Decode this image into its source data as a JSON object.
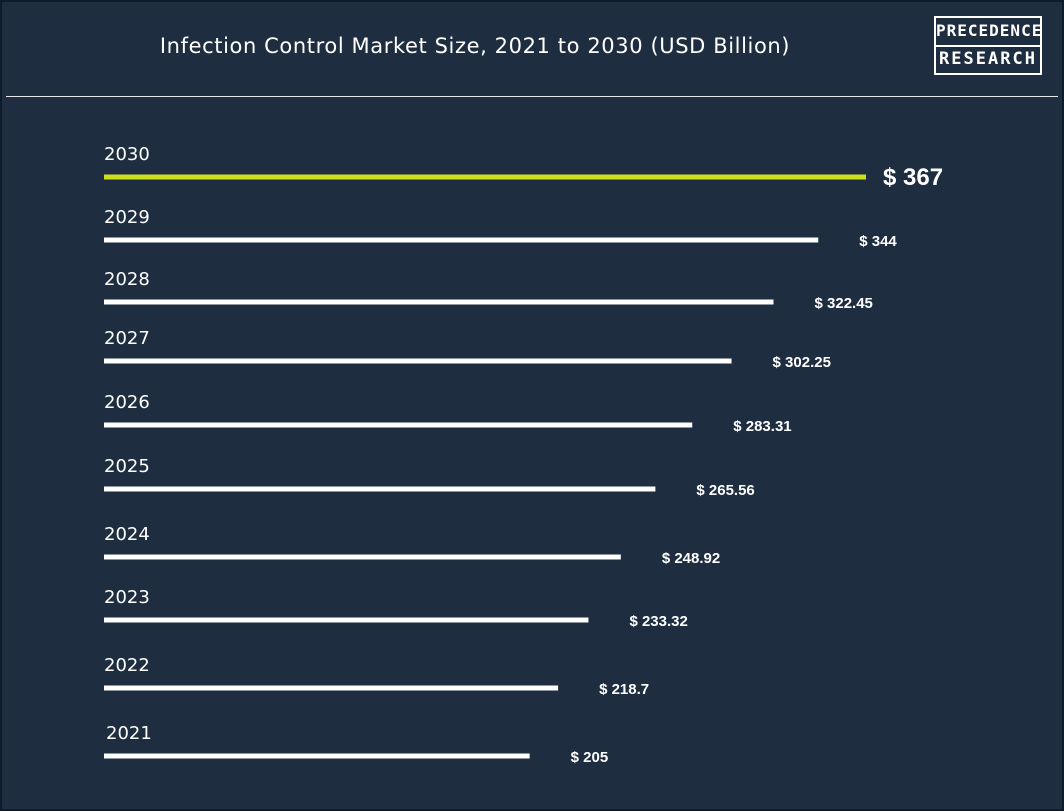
{
  "header": {
    "title": "Infection Control Market Size, 2021 to 2030 (USD Billion)",
    "logo_line1": "PRECEDENCE",
    "logo_line2": "RESEARCH"
  },
  "colors": {
    "background": "#1e2d40",
    "bar": "#ffffff",
    "highlight_bar": "#cde11f",
    "text": "#ffffff"
  },
  "chart_data": {
    "type": "bar",
    "orientation": "horizontal",
    "title": "Infection Control Market Size, 2021 to 2030 (USD Billion)",
    "categories": [
      "2030",
      "2029",
      "2028",
      "2027",
      "2026",
      "2025",
      "2024",
      "2023",
      "2022",
      "2021"
    ],
    "values": [
      367,
      344,
      322.45,
      302.25,
      283.31,
      265.56,
      248.92,
      233.32,
      218.7,
      205
    ],
    "value_labels": [
      "$ 367",
      "$ 344",
      "$ 322.45",
      "$ 302.25",
      "$ 283.31",
      "$ 265.56",
      "$ 248.92",
      "$ 233.32",
      "$ 218.7",
      "$ 205"
    ],
    "highlight_category": "2030",
    "unit": "USD Billion",
    "grid": false,
    "legend": "none"
  }
}
